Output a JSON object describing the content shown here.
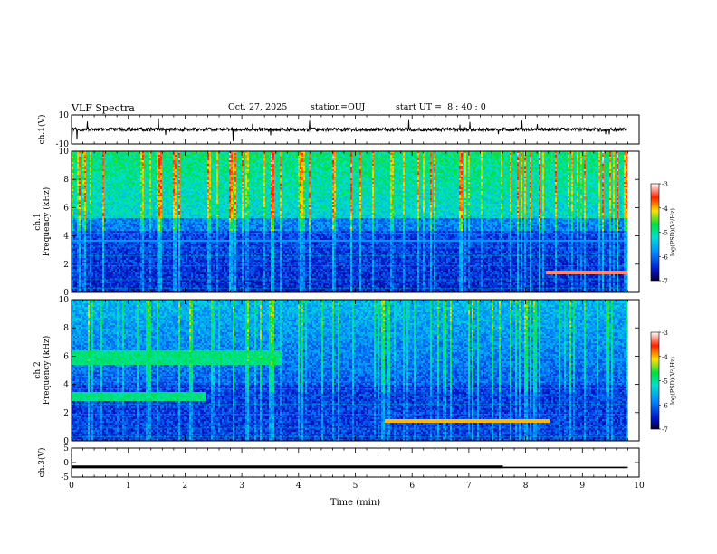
{
  "header": {
    "title": "VLF Spectra",
    "date": "Oct. 27, 2025",
    "station": "station=OUJ",
    "start": "start UT =  8 : 40 : 0"
  },
  "chart_data": {
    "type": "heatmap",
    "title": "VLF Spectra",
    "xlabel": "Time (min)",
    "xlim": [
      0,
      10
    ],
    "xticks": [
      "0",
      "1",
      "2",
      "3",
      "4",
      "5",
      "6",
      "7",
      "8",
      "9",
      "10"
    ],
    "data_end_min": 9.8,
    "panels": [
      {
        "id": "ch1-waveform",
        "type": "line",
        "ylabel": "ch.1(V)",
        "ylim": [
          -10,
          10
        ],
        "yticks": [
          "10",
          "-10"
        ],
        "baseline": 0,
        "noise_amplitude": 1.2
      },
      {
        "id": "ch1-spectrogram",
        "type": "heatmap",
        "ylabel": "ch.1\nFrequency (kHz)",
        "ylim": [
          0,
          10
        ],
        "yticks": [
          "0",
          "2",
          "4",
          "6",
          "8",
          "10"
        ],
        "colorbar": {
          "label": "log(PSD)(V²/Hz)",
          "range": [
            -7,
            -3
          ],
          "ticks": [
            "-3",
            "-4",
            "-5",
            "-6",
            "-7"
          ]
        },
        "features": [
          {
            "kind": "broadband_sferics",
            "freq_range_khz": [
              5,
              10
            ],
            "level": -4.2
          },
          {
            "kind": "tone",
            "freq_khz": 1.4,
            "t_range_min": [
              8.35,
              9.8
            ],
            "level": -3.3
          },
          {
            "kind": "tone",
            "freq_khz": 3.7,
            "t_range_min": [
              0,
              9.8
            ],
            "level": -5.8
          }
        ]
      },
      {
        "id": "ch2-spectrogram",
        "type": "heatmap",
        "ylabel": "ch.2\nFrequency (kHz)",
        "ylim": [
          0,
          10
        ],
        "yticks": [
          "0",
          "2",
          "4",
          "6",
          "8",
          "10"
        ],
        "colorbar": {
          "label": "log(PSD)(V²/Hz)",
          "range": [
            -7,
            -3
          ],
          "ticks": [
            "-3",
            "-4",
            "-5",
            "-6",
            "-7"
          ]
        },
        "features": [
          {
            "kind": "band",
            "freq_range_khz": [
              5.4,
              6.4
            ],
            "t_range_min": [
              0,
              3.7
            ],
            "level": -4.9
          },
          {
            "kind": "band",
            "freq_range_khz": [
              2.8,
              3.5
            ],
            "t_range_min": [
              0,
              2.35
            ],
            "level": -4.9
          },
          {
            "kind": "tone",
            "freq_khz": 1.4,
            "t_range_min": [
              5.5,
              8.4
            ],
            "level": -4.0
          }
        ]
      },
      {
        "id": "ch3-level",
        "type": "line",
        "ylabel": "ch.3(V)",
        "ylim": [
          -5,
          5
        ],
        "yticks": [
          "5",
          "0",
          "-5"
        ],
        "value": -1.5,
        "value_change_min": 7.6,
        "value_after_change": -1.7
      }
    ]
  }
}
